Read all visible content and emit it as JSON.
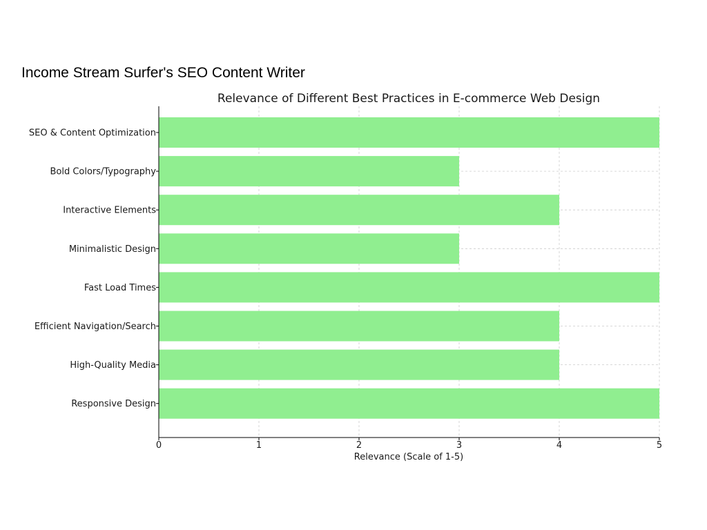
{
  "page": {
    "heading": "Income Stream Surfer's SEO Content Writer"
  },
  "chart_data": {
    "type": "bar",
    "orientation": "horizontal",
    "title": "Relevance of Different Best Practices in E-commerce Web Design",
    "xlabel": "Relevance (Scale of 1-5)",
    "ylabel": "",
    "xlim": [
      0,
      5
    ],
    "xticks": [
      "0",
      "1",
      "2",
      "3",
      "4",
      "5"
    ],
    "categories": [
      "SEO & Content Optimization",
      "Bold Colors/Typography",
      "Interactive Elements",
      "Minimalistic Design",
      "Fast Load Times",
      "Efficient Navigation/Search",
      "High-Quality Media",
      "Responsive Design"
    ],
    "values": [
      5,
      3,
      4,
      3,
      5,
      4,
      4,
      5
    ],
    "bar_color": "#90ee90",
    "grid": true,
    "grid_style": "dashed"
  }
}
